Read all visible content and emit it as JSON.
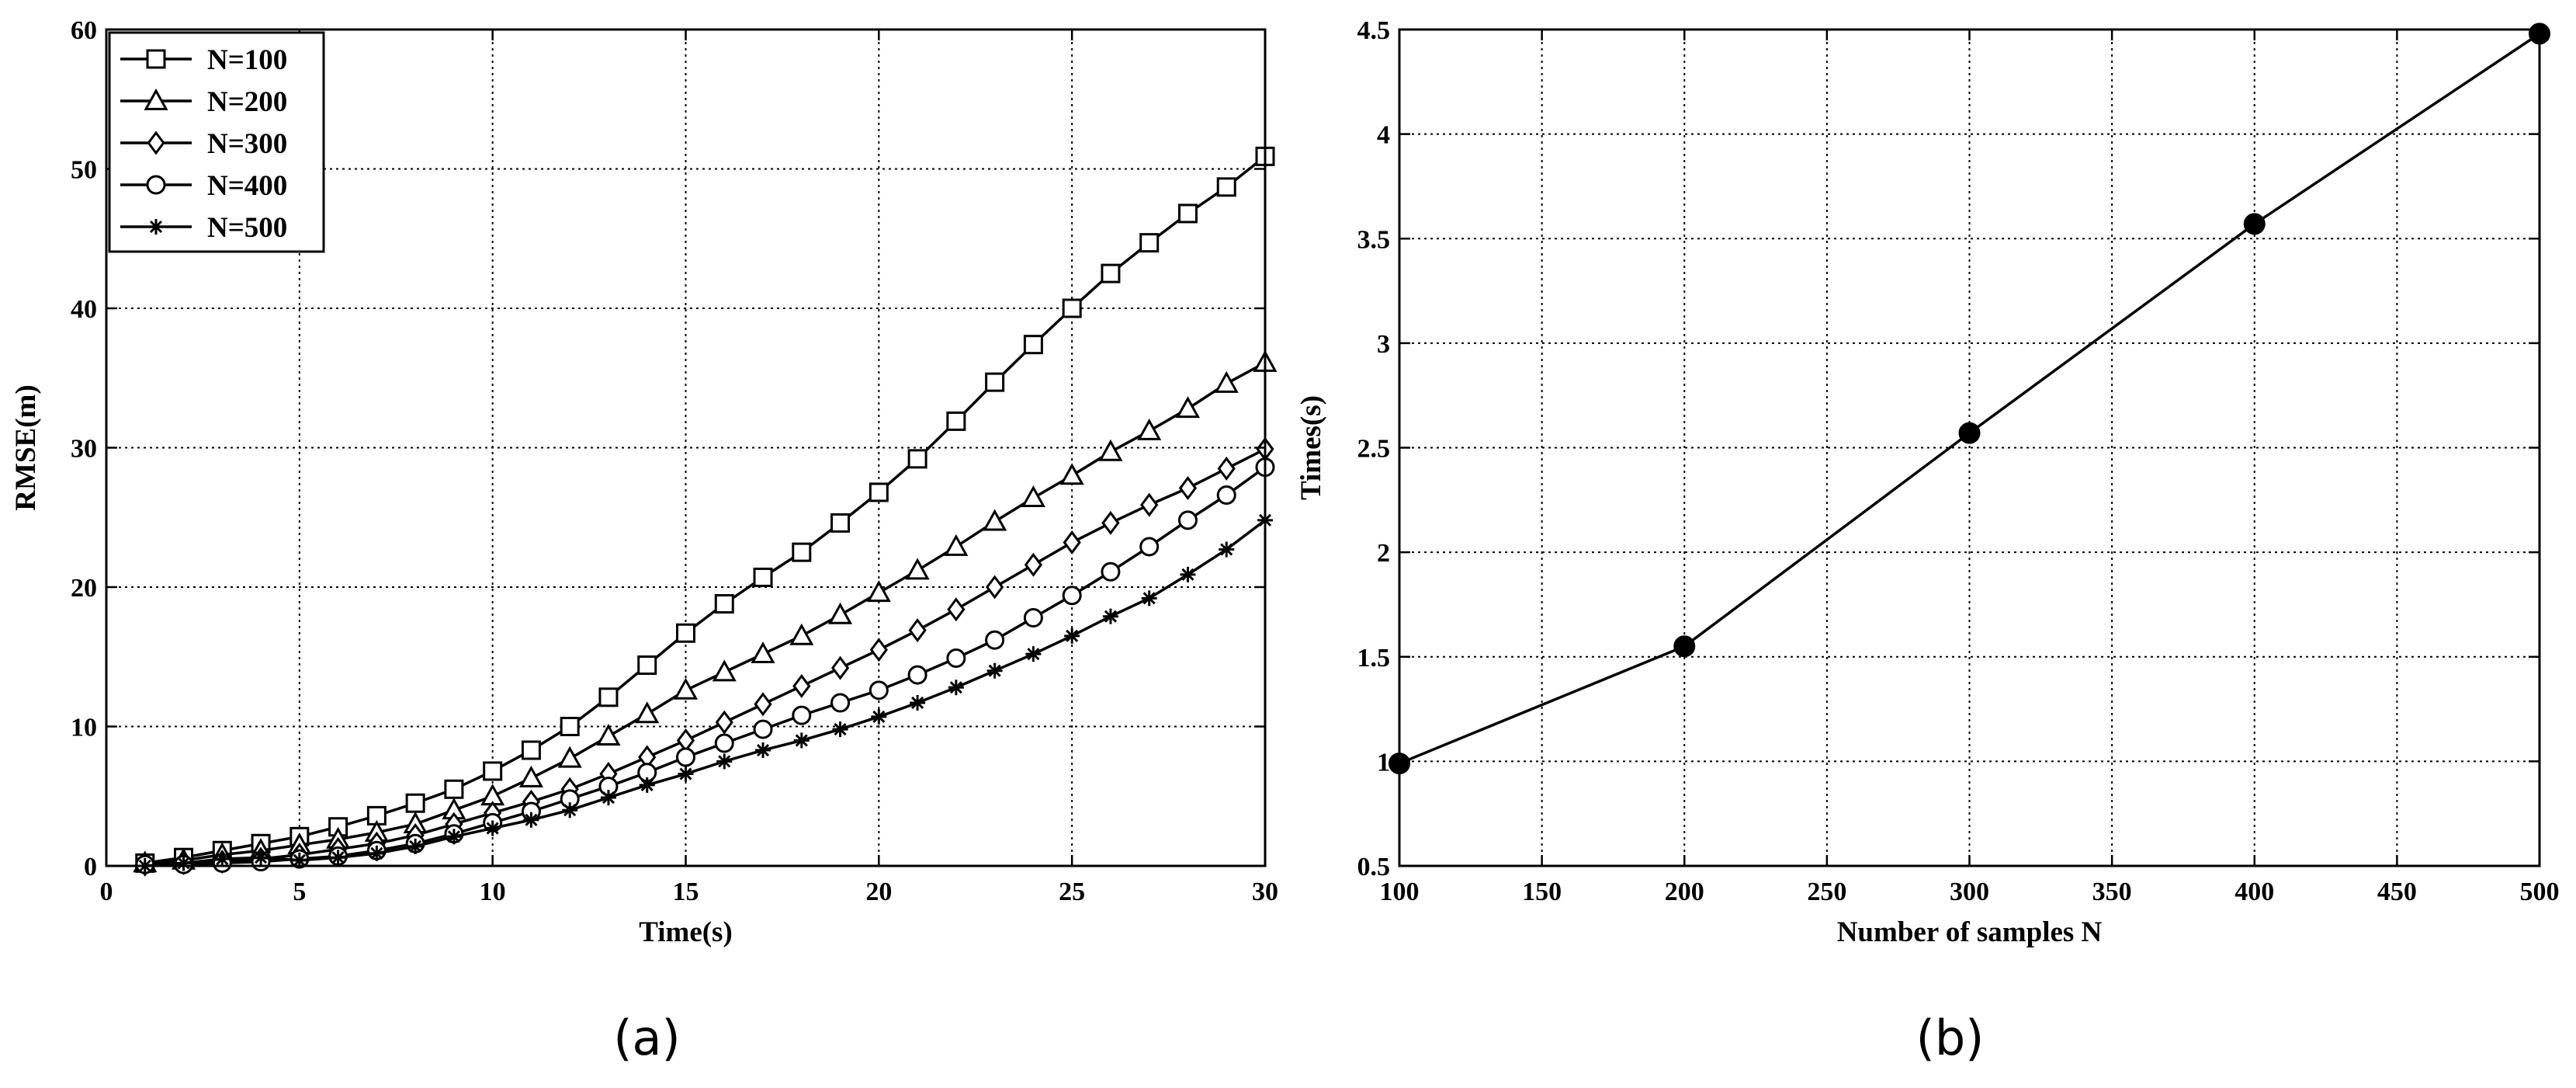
{
  "chart_data": [
    {
      "type": "line",
      "panel_label": "(a)",
      "xlabel": "Time(s)",
      "ylabel": "RMSE(m)",
      "xlim": [
        0,
        30
      ],
      "ylim": [
        0,
        60
      ],
      "xticks": [
        0,
        5,
        10,
        15,
        20,
        25,
        30
      ],
      "yticks": [
        0,
        10,
        20,
        30,
        40,
        50,
        60
      ],
      "grid": true,
      "legend_position": "top-left",
      "x": [
        1,
        2,
        3,
        4,
        5,
        6,
        7,
        8,
        9,
        10,
        11,
        12,
        13,
        14,
        15,
        16,
        17,
        18,
        19,
        20,
        21,
        22,
        23,
        24,
        25,
        26,
        27,
        28,
        29,
        30
      ],
      "series": [
        {
          "name": "N=100",
          "marker": "square",
          "values": [
            0.2,
            0.6,
            1.1,
            1.6,
            2.1,
            2.8,
            3.6,
            4.5,
            5.5,
            6.8,
            8.3,
            10.0,
            12.1,
            14.4,
            16.7,
            18.8,
            20.7,
            22.5,
            24.6,
            26.8,
            29.2,
            31.9,
            34.7,
            37.4,
            40.0,
            42.5,
            44.7,
            46.8,
            48.7,
            50.9
          ]
        },
        {
          "name": "N=200",
          "marker": "triangle",
          "values": [
            0.2,
            0.4,
            0.8,
            1.1,
            1.5,
            1.9,
            2.4,
            3.0,
            4.0,
            5.0,
            6.3,
            7.7,
            9.3,
            10.9,
            12.6,
            13.9,
            15.2,
            16.5,
            18.0,
            19.6,
            21.2,
            22.9,
            24.7,
            26.4,
            28.0,
            29.7,
            31.2,
            32.8,
            34.6,
            36.1
          ]
        },
        {
          "name": "N=300",
          "marker": "diamond",
          "values": [
            0.1,
            0.2,
            0.3,
            0.5,
            0.8,
            1.2,
            1.6,
            2.2,
            3.0,
            3.8,
            4.6,
            5.5,
            6.6,
            7.8,
            9.0,
            10.3,
            11.6,
            12.9,
            14.2,
            15.5,
            16.9,
            18.4,
            20.0,
            21.6,
            23.2,
            24.6,
            25.9,
            27.1,
            28.5,
            29.9
          ]
        },
        {
          "name": "N=400",
          "marker": "circle",
          "values": [
            0.1,
            0.1,
            0.2,
            0.3,
            0.5,
            0.7,
            1.1,
            1.6,
            2.3,
            3.1,
            3.9,
            4.8,
            5.7,
            6.7,
            7.8,
            8.8,
            9.8,
            10.8,
            11.7,
            12.6,
            13.7,
            14.9,
            16.2,
            17.8,
            19.4,
            21.1,
            22.9,
            24.8,
            26.6,
            28.6
          ]
        },
        {
          "name": "N=500",
          "marker": "asterisk",
          "values": [
            0.0,
            0.2,
            0.5,
            0.6,
            0.4,
            0.6,
            0.9,
            1.4,
            2.1,
            2.7,
            3.3,
            4.0,
            4.9,
            5.8,
            6.6,
            7.5,
            8.3,
            9.0,
            9.8,
            10.7,
            11.7,
            12.8,
            14.0,
            15.2,
            16.5,
            17.9,
            19.2,
            20.9,
            22.7,
            24.8
          ]
        }
      ]
    },
    {
      "type": "line",
      "panel_label": "(b)",
      "xlabel": "Number of samples N",
      "ylabel": "Times(s)",
      "xlim": [
        100,
        500
      ],
      "ylim": [
        0.5,
        4.5
      ],
      "xticks": [
        100,
        150,
        200,
        250,
        300,
        350,
        400,
        450,
        500
      ],
      "yticks": [
        0.5,
        1,
        1.5,
        2,
        2.5,
        3,
        3.5,
        4,
        4.5
      ],
      "grid": true,
      "x": [
        100,
        200,
        300,
        400,
        500
      ],
      "series": [
        {
          "name": "",
          "marker": "filled-circle",
          "values": [
            0.99,
            1.55,
            2.57,
            3.57,
            4.48
          ]
        }
      ]
    }
  ]
}
